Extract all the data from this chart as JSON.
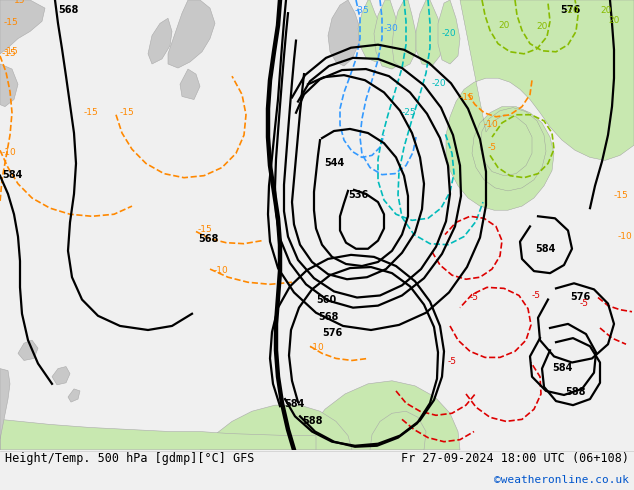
{
  "title_left": "Height/Temp. 500 hPa [gdmp][°C] GFS",
  "title_right": "Fr 27-09-2024 18:00 UTC (06+108)",
  "watermark": "©weatheronline.co.uk",
  "footer_bg": "#f0f0f0",
  "ocean_color": "#d2d8e0",
  "land_warm": "#c8e8b0",
  "land_gray": "#c8c8c8",
  "hc": "#000000",
  "tc_blue": "#3399ff",
  "tc_cyan": "#00bbbb",
  "tc_orange": "#ff8800",
  "tc_red": "#dd0000",
  "tc_green": "#88bb00",
  "hl": 1.6,
  "hlb": 3.2,
  "tl": 1.2,
  "lfs": 7,
  "footer_fs": 8.5
}
